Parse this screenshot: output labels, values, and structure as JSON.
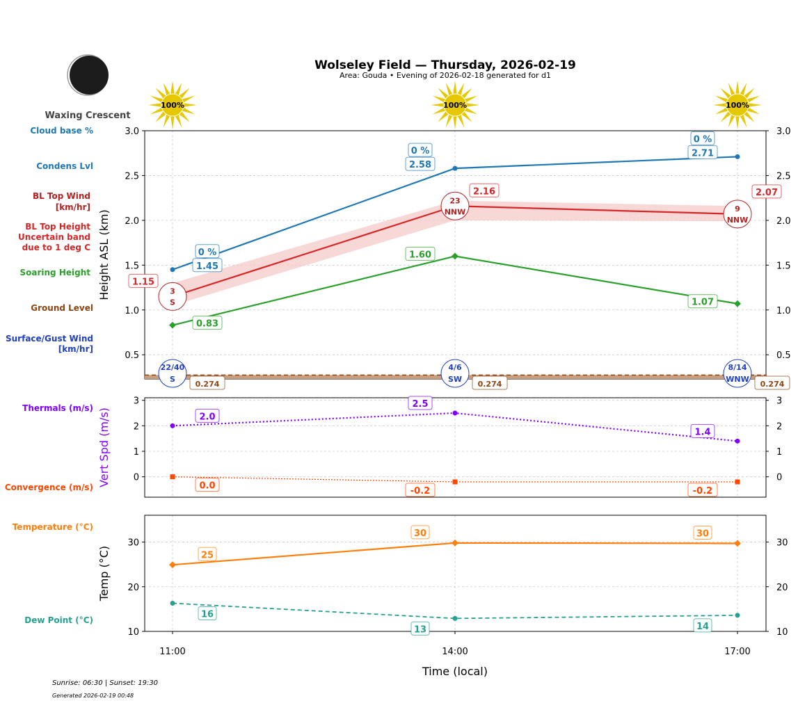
{
  "header": {
    "title": "Wolseley Field — Thursday, 2026-02-19",
    "subtitle": "Area: Gouda • Evening of 2026-02-18 generated for d1",
    "moon_phase": "Waxing Crescent",
    "sun_icons": [
      "100%",
      "100%",
      "100%"
    ]
  },
  "footer": {
    "sun_times": "Sunrise: 06:30 | Sunset: 19:30",
    "generated": "Generated 2026-02-19 00:48"
  },
  "side_labels": {
    "cloud_base": "Cloud base %",
    "condens": "Condens Lvl",
    "bl_wind": [
      "BL Top Wind",
      "[km/hr]"
    ],
    "bl_height": [
      "BL Top Height",
      "Uncertain band",
      "due to 1 deg C"
    ],
    "soaring": "Soaring Height",
    "ground": "Ground Level",
    "surface_wind": [
      "Surface/Gust Wind",
      "[km/hr]"
    ],
    "thermals": "Thermals (m/s)",
    "convergence": "Convergence (m/s)",
    "temperature": "Temperature (°C)",
    "dew_point": "Dew Point (°C)"
  },
  "colors": {
    "cloud": "#1f77b4",
    "bl": "#d62728",
    "bl_band": "#f5c6c6",
    "soaring": "#2ca02c",
    "ground": "#8b4513",
    "surface": "#1f3fbf",
    "thermal": "#7f00ff",
    "conv": "#ff4500",
    "temp": "#ff7f0e",
    "dew": "#26a08f",
    "sun": "#e6c800"
  },
  "chart_data": [
    {
      "type": "line",
      "ylabel": "Height ASL (km)",
      "ylim": [
        0.23,
        3.0
      ],
      "yticks": [
        0.5,
        1.0,
        1.5,
        2.0,
        2.5,
        3.0
      ],
      "x": [
        "11:00",
        "14:00",
        "17:00"
      ],
      "grid": true,
      "series": [
        {
          "key": "condens",
          "values": [
            1.45,
            2.58,
            2.71
          ],
          "labels": [
            "1.45",
            "2.58",
            "2.71"
          ],
          "cloud_pct": [
            "0 %",
            "0 %",
            "0 %"
          ]
        },
        {
          "key": "bl_top",
          "values": [
            1.15,
            2.16,
            2.07
          ],
          "labels": [
            "1.15",
            "2.16",
            "2.07"
          ],
          "band_low": [
            1.05,
            2.0,
            1.99
          ],
          "band_high": [
            1.3,
            2.22,
            2.16
          ],
          "wind_speed": [
            "3",
            "23",
            "9"
          ],
          "wind_dir": [
            "S",
            "NNW",
            "NNW"
          ]
        },
        {
          "key": "soaring",
          "values": [
            0.83,
            1.6,
            1.07
          ],
          "labels": [
            "0.83",
            "1.60",
            "1.07"
          ]
        },
        {
          "key": "ground",
          "values": [
            0.274,
            0.274,
            0.274
          ],
          "labels": [
            "0.274",
            "0.274",
            "0.274"
          ]
        },
        {
          "key": "surface_wind",
          "speed": [
            "22/40",
            "4/6",
            "8/14"
          ],
          "dir": [
            "S",
            "SW",
            "WNW"
          ]
        }
      ]
    },
    {
      "type": "line",
      "ylabel": "Vert Spd (m/s)",
      "ylim": [
        -0.8,
        3.1
      ],
      "yticks": [
        0,
        1,
        2,
        3
      ],
      "x": [
        "11:00",
        "14:00",
        "17:00"
      ],
      "series": [
        {
          "key": "thermals",
          "values": [
            2.0,
            2.5,
            1.4
          ],
          "labels": [
            "2.0",
            "2.5",
            "1.4"
          ]
        },
        {
          "key": "convergence",
          "values": [
            0.0,
            -0.2,
            -0.2
          ],
          "labels": [
            "0.0",
            "-0.2",
            "-0.2"
          ]
        }
      ]
    },
    {
      "type": "line",
      "ylabel": "Temp (°C)",
      "xlabel": "Time (local)",
      "ylim": [
        10,
        36
      ],
      "yticks": [
        10,
        20,
        30
      ],
      "x": [
        "11:00",
        "14:00",
        "17:00"
      ],
      "series": [
        {
          "key": "temperature",
          "values": [
            24.9,
            29.8,
            29.7
          ],
          "labels": [
            "25",
            "30",
            "30"
          ]
        },
        {
          "key": "dew_point",
          "values": [
            16.3,
            12.9,
            13.6
          ],
          "labels": [
            "16",
            "13",
            "14"
          ]
        }
      ]
    }
  ]
}
